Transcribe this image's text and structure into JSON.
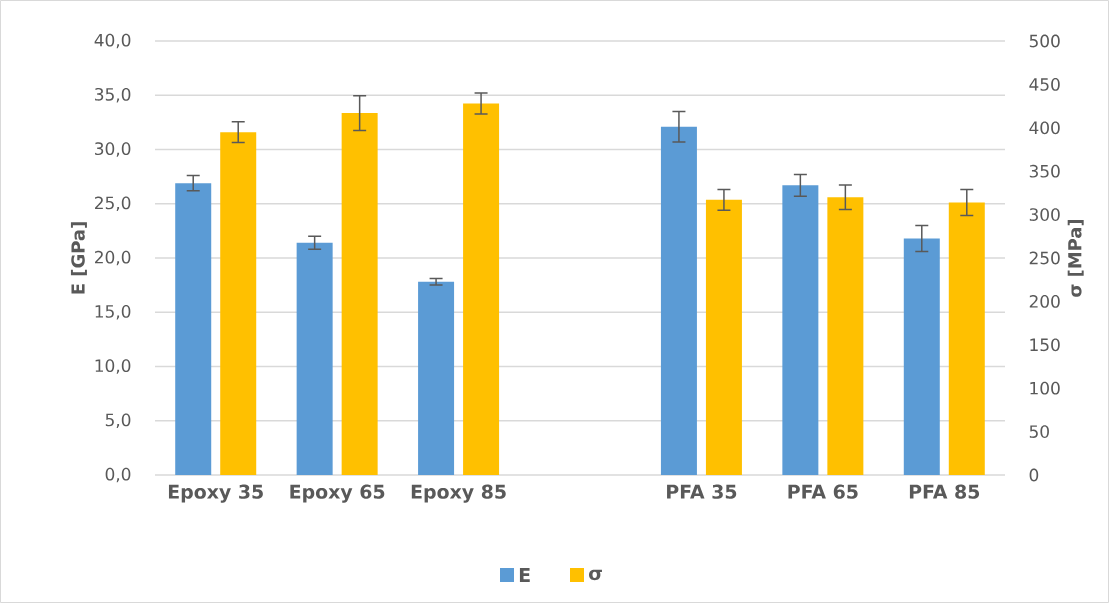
{
  "chart_data": {
    "type": "bar",
    "categories": [
      "Epoxy 35",
      "Epoxy 65",
      "Epoxy 85",
      null,
      "PFA 35",
      "PFA 65",
      "PFA 85"
    ],
    "ylabel": "E [GPa]",
    "y2label": "σ [MPa]",
    "ylim": [
      0,
      40
    ],
    "yticks": [
      {
        "value": 0,
        "label": "0,0"
      },
      {
        "value": 5,
        "label": "5,0"
      },
      {
        "value": 10,
        "label": "10,0"
      },
      {
        "value": 15,
        "label": "15,0"
      },
      {
        "value": 20,
        "label": "20,0"
      },
      {
        "value": 25,
        "label": "25,0"
      },
      {
        "value": 30,
        "label": "30,0"
      },
      {
        "value": 35,
        "label": "35,0"
      },
      {
        "value": 40,
        "label": "40,0"
      }
    ],
    "y2lim": [
      0,
      500
    ],
    "y2ticks": [
      0,
      50,
      100,
      150,
      200,
      250,
      300,
      350,
      400,
      450,
      500
    ],
    "grid": "y",
    "legend": "bottom",
    "series": [
      {
        "name": "E",
        "color": "#5b9bd5",
        "values": [
          26.9,
          21.4,
          17.8,
          null,
          32.1,
          26.7,
          21.8
        ],
        "errors": [
          0.7,
          0.6,
          0.3,
          null,
          1.4,
          1.0,
          1.2
        ]
      },
      {
        "name": "σ",
        "color": "#ffc000",
        "axis": "y2",
        "values": [
          395,
          417,
          428,
          null,
          317,
          320,
          314
        ],
        "errors": [
          12,
          20,
          12,
          null,
          12,
          14,
          15
        ]
      }
    ]
  }
}
